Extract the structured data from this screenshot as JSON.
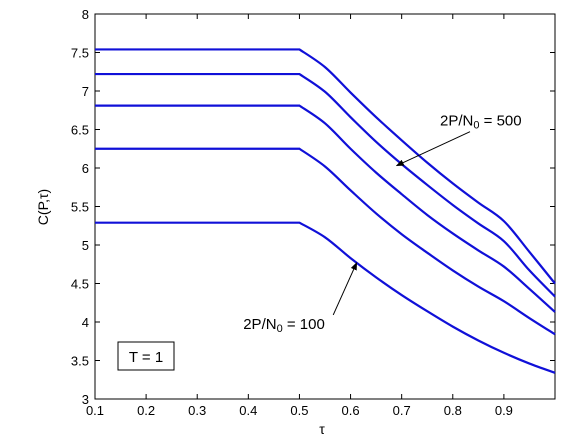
{
  "chart_data": {
    "type": "line",
    "title": "",
    "xlabel": "τ",
    "ylabel": "C(P,τ)",
    "xlim": [
      0.1,
      1.0
    ],
    "ylim": [
      3,
      8
    ],
    "xticks": [
      0.1,
      0.2,
      0.3,
      0.4,
      0.5,
      0.6,
      0.7,
      0.8,
      0.9
    ],
    "xtick_labels": [
      "0.1",
      "0.2",
      "0.3",
      "0.4",
      "0.5",
      "0.6",
      "0.7",
      "0.8",
      "0.9"
    ],
    "yticks": [
      3,
      3.5,
      4,
      4.5,
      5,
      5.5,
      6,
      6.5,
      7,
      7.5,
      8
    ],
    "ytick_labels": [
      "3",
      "3.5",
      "4",
      "4.5",
      "5",
      "5.5",
      "6",
      "6.5",
      "7",
      "7.5",
      "8"
    ],
    "grid": false,
    "line_color": "#1010d8",
    "x": [
      0.1,
      0.5,
      0.55,
      0.6,
      0.65,
      0.7,
      0.75,
      0.8,
      0.85,
      0.9,
      0.95,
      1.0
    ],
    "series": [
      {
        "values": [
          5.29,
          5.29,
          5.1,
          4.83,
          4.58,
          4.35,
          4.14,
          3.94,
          3.76,
          3.6,
          3.46,
          3.34
        ]
      },
      {
        "values": [
          6.25,
          6.25,
          6.02,
          5.71,
          5.41,
          5.14,
          4.9,
          4.67,
          4.46,
          4.27,
          4.05,
          3.84
        ]
      },
      {
        "values": [
          6.81,
          6.81,
          6.58,
          6.25,
          5.94,
          5.66,
          5.39,
          5.15,
          4.93,
          4.72,
          4.43,
          4.13
        ]
      },
      {
        "values": [
          7.22,
          7.22,
          6.99,
          6.66,
          6.34,
          6.05,
          5.78,
          5.52,
          5.28,
          5.05,
          4.67,
          4.33
        ]
      },
      {
        "values": [
          7.54,
          7.54,
          7.31,
          6.98,
          6.66,
          6.36,
          6.07,
          5.8,
          5.55,
          5.31,
          4.91,
          4.5
        ]
      }
    ],
    "annotations": [
      {
        "text": "2P/N",
        "sub": "0",
        "tail": " = 500",
        "x": 0.775,
        "y": 6.55,
        "arrow_to": [
          0.69,
          6.03
        ]
      },
      {
        "text": "2P/N",
        "sub": "0",
        "tail": " = 100",
        "x": 0.39,
        "y": 3.91,
        "arrow_to": [
          0.612,
          4.77
        ]
      }
    ],
    "legend_box": {
      "text": "T = 1"
    }
  }
}
